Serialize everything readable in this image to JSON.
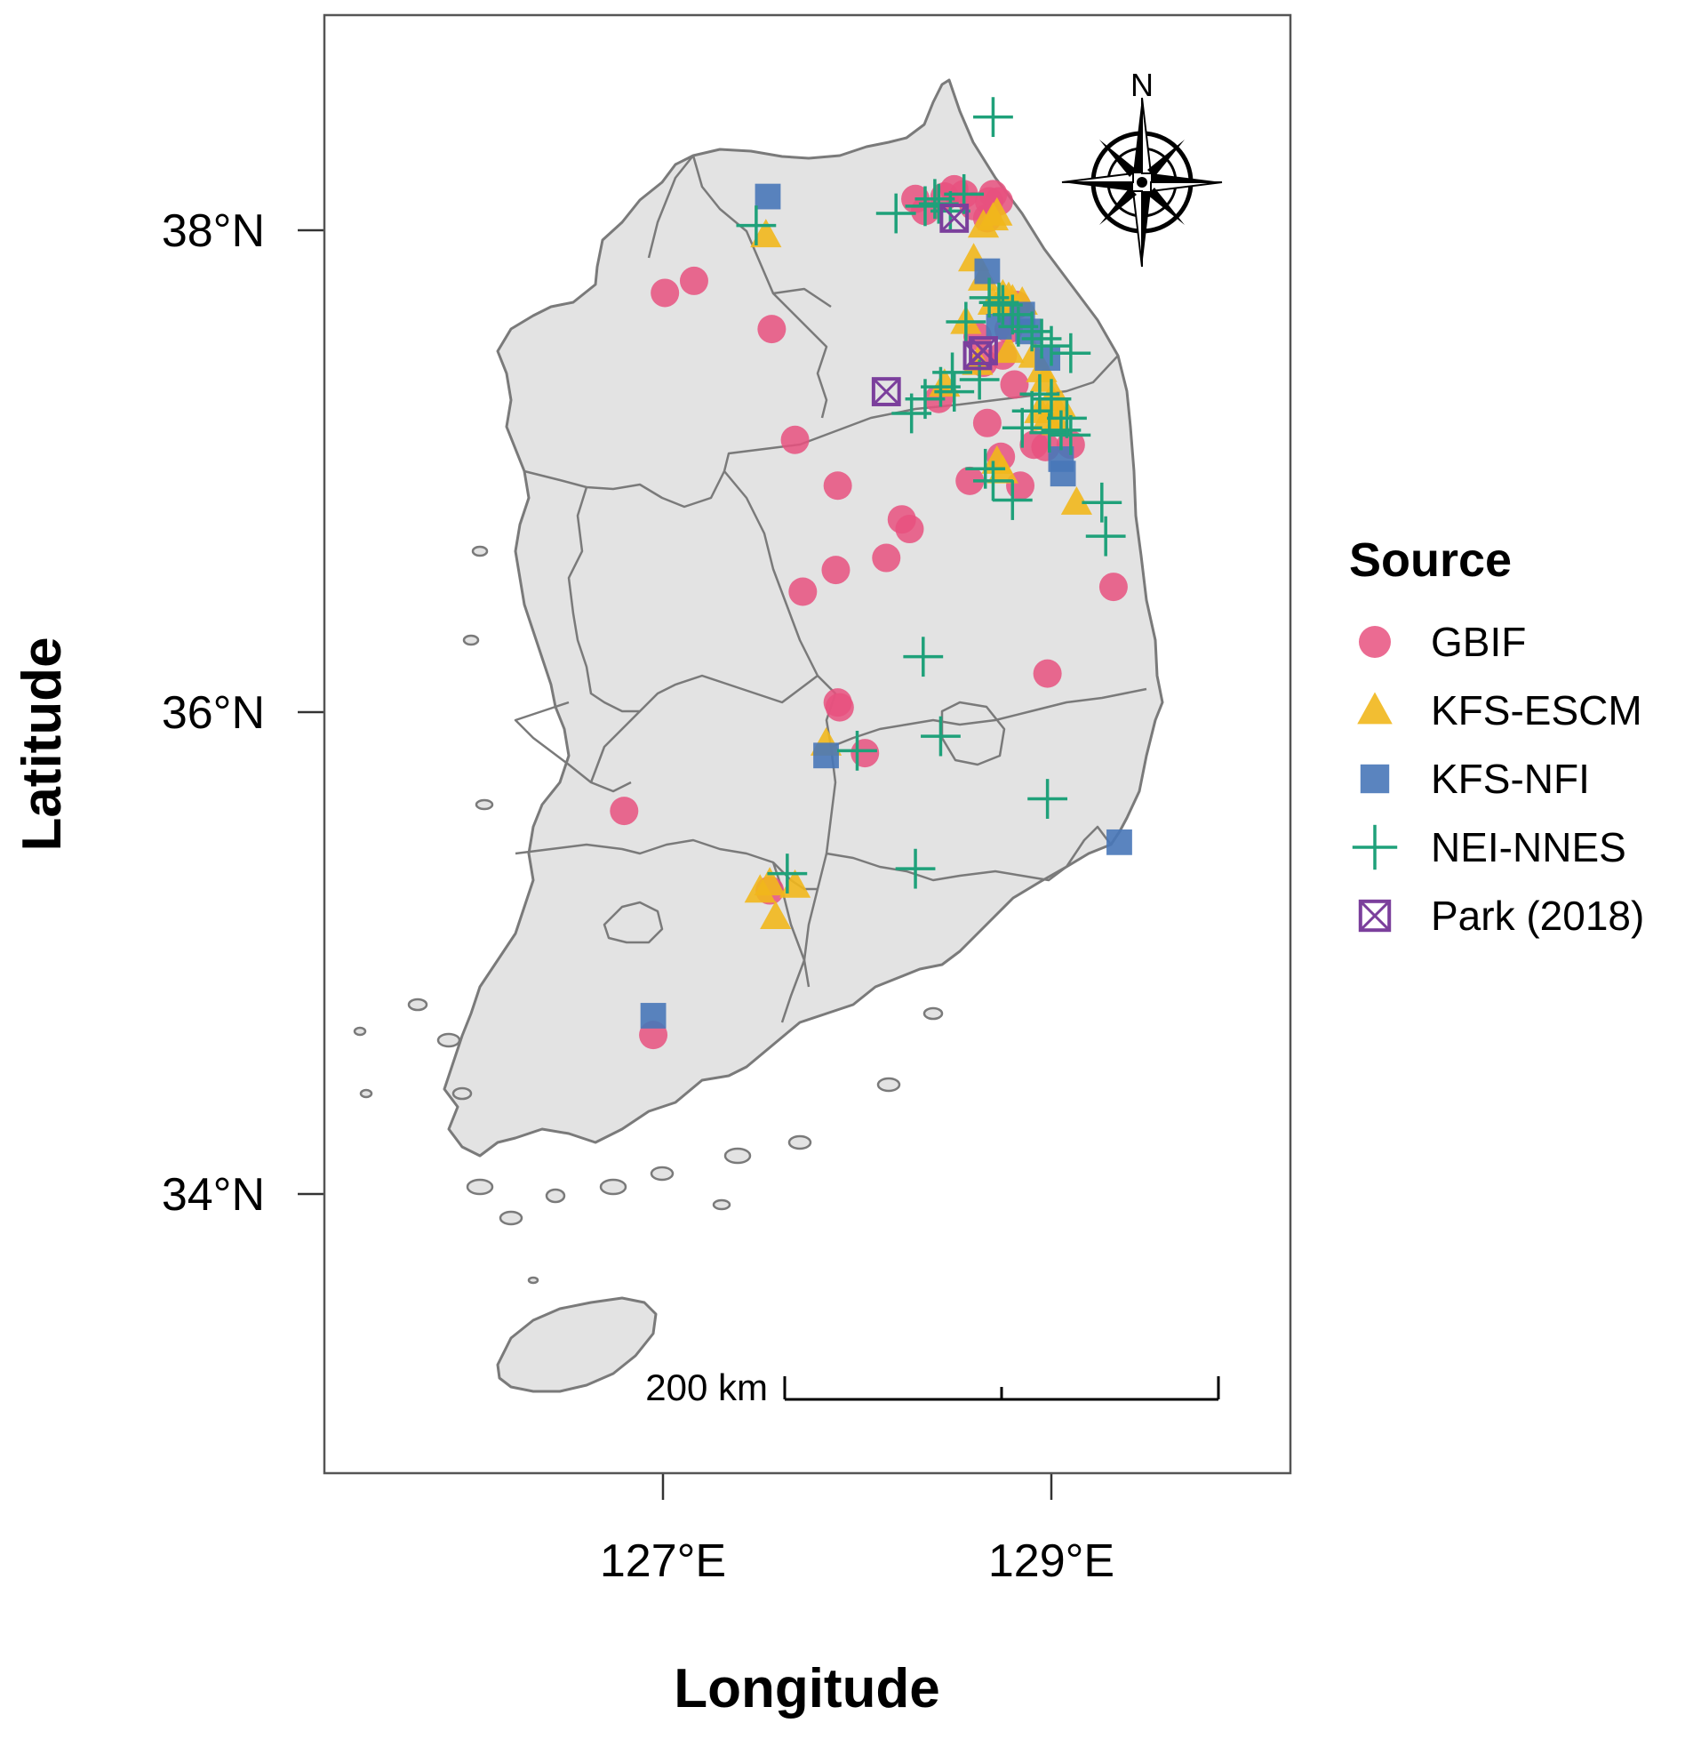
{
  "axes": {
    "x_label": "Longitude",
    "y_label": "Latitude",
    "x_ticks": [
      {
        "value": 127,
        "label": "127°E"
      },
      {
        "value": 129,
        "label": "129°E"
      }
    ],
    "y_ticks": [
      {
        "value": 38,
        "label": "38°N"
      },
      {
        "value": 36,
        "label": "36°N"
      },
      {
        "value": 34,
        "label": "34°N"
      }
    ],
    "x_range": [
      125.27,
      130.23
    ],
    "y_range": [
      32.8,
      38.9
    ]
  },
  "compass": {
    "label": "N",
    "icon": "north-arrow-compass-rose"
  },
  "scale_bar": {
    "label": "200 km"
  },
  "legend": {
    "title": "Source",
    "entries": [
      {
        "key": "GBIF",
        "label": "GBIF",
        "shape": "circle",
        "color": "#e8517f"
      },
      {
        "key": "KFS-ESCM",
        "label": "KFS-ESCM",
        "shape": "triangle",
        "color": "#f1b71c"
      },
      {
        "key": "KFS-NFI",
        "label": "KFS-NFI",
        "shape": "square",
        "color": "#4877b8"
      },
      {
        "key": "NEI-NNES",
        "label": "NEI-NNES",
        "shape": "plus",
        "color": "#1fa17a"
      },
      {
        "key": "Park (2018)",
        "label": "Park (2018)",
        "shape": "boxed-x",
        "color": "#7b3f9c"
      }
    ]
  },
  "map_colors": {
    "land": "#e3e3e3",
    "border": "#7a7a7a",
    "frame": "#555555"
  },
  "points": {
    "GBIF": [
      [
        128.5,
        38.17
      ],
      [
        128.55,
        38.15
      ],
      [
        128.6,
        38.1
      ],
      [
        128.7,
        38.15
      ],
      [
        128.68,
        38.12
      ],
      [
        128.73,
        38.12
      ],
      [
        128.67,
        38.05
      ],
      [
        128.45,
        38.14
      ],
      [
        128.3,
        38.13
      ],
      [
        128.35,
        38.08
      ],
      [
        127.01,
        37.74
      ],
      [
        127.16,
        37.79
      ],
      [
        127.56,
        37.59
      ],
      [
        128.82,
        37.69
      ],
      [
        128.78,
        37.59
      ],
      [
        128.75,
        37.48
      ],
      [
        128.65,
        37.45
      ],
      [
        128.81,
        37.36
      ],
      [
        128.91,
        37.11
      ],
      [
        128.97,
        37.1
      ],
      [
        129.1,
        37.11
      ],
      [
        128.74,
        37.06
      ],
      [
        128.58,
        36.96
      ],
      [
        128.84,
        36.94
      ],
      [
        127.68,
        37.13
      ],
      [
        127.9,
        36.94
      ],
      [
        128.23,
        36.8
      ],
      [
        128.27,
        36.76
      ],
      [
        128.15,
        36.64
      ],
      [
        127.89,
        36.59
      ],
      [
        127.72,
        36.5
      ],
      [
        129.32,
        36.52
      ],
      [
        128.98,
        36.16
      ],
      [
        127.9,
        36.04
      ],
      [
        127.91,
        36.02
      ],
      [
        128.04,
        35.83
      ],
      [
        126.8,
        35.59
      ],
      [
        127.55,
        35.26
      ],
      [
        126.95,
        34.66
      ],
      [
        128.62,
        37.56
      ],
      [
        128.42,
        37.3
      ],
      [
        128.67,
        37.2
      ]
    ],
    "KFS-ESCM": [
      [
        128.6,
        37.88
      ],
      [
        128.65,
        37.8
      ],
      [
        128.7,
        37.7
      ],
      [
        128.75,
        37.73
      ],
      [
        128.78,
        37.72
      ],
      [
        128.8,
        37.71
      ],
      [
        128.85,
        37.7
      ],
      [
        128.7,
        38.05
      ],
      [
        128.65,
        38.02
      ],
      [
        128.72,
        38.07
      ],
      [
        127.53,
        37.98
      ],
      [
        128.56,
        37.62
      ],
      [
        128.45,
        37.36
      ],
      [
        128.62,
        37.45
      ],
      [
        128.91,
        37.48
      ],
      [
        128.95,
        37.42
      ],
      [
        128.97,
        37.38
      ],
      [
        129.0,
        37.3
      ],
      [
        129.05,
        37.27
      ],
      [
        128.94,
        37.25
      ],
      [
        128.98,
        37.22
      ],
      [
        129.03,
        37.2
      ],
      [
        128.72,
        37.04
      ],
      [
        128.75,
        37.0
      ],
      [
        129.13,
        36.87
      ],
      [
        127.84,
        35.87
      ],
      [
        127.5,
        35.26
      ],
      [
        127.55,
        35.29
      ],
      [
        127.68,
        35.28
      ],
      [
        127.58,
        35.15
      ],
      [
        128.78,
        37.5
      ]
    ],
    "KFS-NFI": [
      [
        127.54,
        38.14
      ],
      [
        128.67,
        37.83
      ],
      [
        128.85,
        37.65
      ],
      [
        128.88,
        37.58
      ],
      [
        128.98,
        37.47
      ],
      [
        129.05,
        37.05
      ],
      [
        129.06,
        36.99
      ],
      [
        127.84,
        35.82
      ],
      [
        126.95,
        34.74
      ],
      [
        129.35,
        35.46
      ],
      [
        128.73,
        37.6
      ]
    ],
    "NEI-NNES": [
      [
        128.7,
        38.47
      ],
      [
        128.35,
        38.1
      ],
      [
        128.42,
        38.11
      ],
      [
        128.2,
        38.07
      ],
      [
        128.4,
        38.13
      ],
      [
        128.55,
        38.15
      ],
      [
        128.48,
        38.08
      ],
      [
        127.48,
        38.02
      ],
      [
        128.68,
        37.72
      ],
      [
        128.75,
        37.69
      ],
      [
        128.8,
        37.65
      ],
      [
        128.83,
        37.6
      ],
      [
        128.9,
        37.58
      ],
      [
        128.95,
        37.55
      ],
      [
        129.0,
        37.52
      ],
      [
        129.1,
        37.49
      ],
      [
        128.56,
        37.62
      ],
      [
        128.49,
        37.41
      ],
      [
        128.43,
        37.35
      ],
      [
        128.28,
        37.24
      ],
      [
        128.35,
        37.3
      ],
      [
        128.5,
        37.33
      ],
      [
        128.63,
        37.38
      ],
      [
        128.94,
        37.32
      ],
      [
        129.0,
        37.3
      ],
      [
        128.85,
        37.18
      ],
      [
        128.99,
        37.16
      ],
      [
        129.05,
        37.17
      ],
      [
        129.1,
        37.15
      ],
      [
        129.08,
        37.22
      ],
      [
        128.7,
        36.96
      ],
      [
        128.8,
        36.88
      ],
      [
        128.66,
        37.01
      ],
      [
        129.26,
        36.87
      ],
      [
        129.28,
        36.73
      ],
      [
        128.34,
        36.23
      ],
      [
        128.43,
        35.9
      ],
      [
        128.0,
        35.84
      ],
      [
        127.64,
        35.33
      ],
      [
        128.3,
        35.35
      ],
      [
        128.98,
        35.64
      ],
      [
        128.73,
        37.7
      ],
      [
        128.9,
        37.25
      ]
    ],
    "Park (2018)": [
      [
        128.5,
        38.05
      ],
      [
        128.62,
        37.48
      ],
      [
        128.65,
        37.5
      ],
      [
        128.15,
        37.33
      ]
    ]
  }
}
